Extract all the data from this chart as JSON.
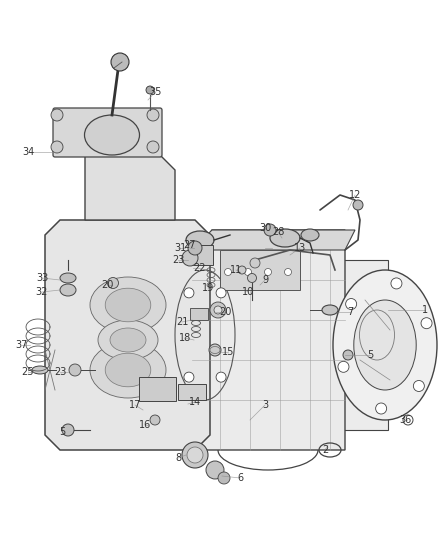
{
  "background_color": "#ffffff",
  "line_color": "#555555",
  "label_color": "#444444",
  "fig_width": 4.38,
  "fig_height": 5.33,
  "dpi": 100,
  "lw": 0.8,
  "gray_fill": "#e8e8e8",
  "dark_line": "#444444",
  "mid_gray": "#cccccc",
  "light_gray": "#f0f0f0"
}
